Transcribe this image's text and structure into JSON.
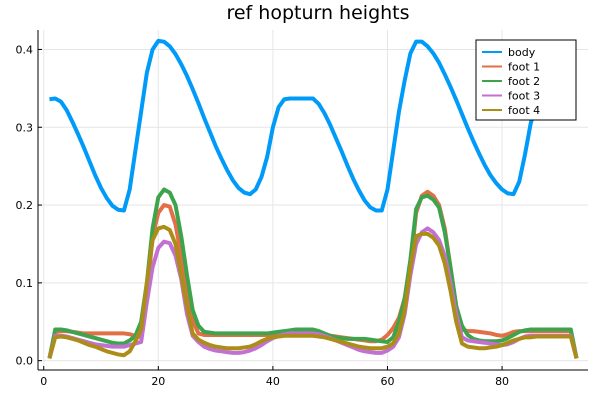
{
  "chart_data": {
    "type": "line",
    "title": "ref hopturn heights",
    "xlabel": "",
    "ylabel": "",
    "xlim": [
      -1,
      95
    ],
    "ylim": [
      -0.012,
      0.425
    ],
    "xticks": [
      0,
      20,
      40,
      60,
      80
    ],
    "xtick_labels": [
      "0",
      "20",
      "40",
      "60",
      "80"
    ],
    "yticks": [
      0.0,
      0.1,
      0.2,
      0.3,
      0.4
    ],
    "ytick_labels": [
      "0.0",
      "0.1",
      "0.2",
      "0.3",
      "0.4"
    ],
    "grid": true,
    "legend_position": "top-right",
    "x": [
      1,
      2,
      3,
      4,
      5,
      6,
      7,
      8,
      9,
      10,
      11,
      12,
      13,
      14,
      15,
      16,
      17,
      18,
      19,
      20,
      21,
      22,
      23,
      24,
      25,
      26,
      27,
      28,
      29,
      30,
      31,
      32,
      33,
      34,
      35,
      36,
      37,
      38,
      39,
      40,
      41,
      42,
      43,
      44,
      45,
      46,
      47,
      48,
      49,
      50,
      51,
      52,
      53,
      54,
      55,
      56,
      57,
      58,
      59,
      60,
      61,
      62,
      63,
      64,
      65,
      66,
      67,
      68,
      69,
      70,
      71,
      72,
      73,
      74,
      75,
      76,
      77,
      78,
      79,
      80,
      81,
      82,
      83,
      84,
      85,
      86,
      87,
      88,
      89,
      90,
      91,
      92,
      93
    ],
    "series": [
      {
        "name": "body",
        "color": "#009af9",
        "values": [
          0.336,
          0.337,
          0.333,
          0.322,
          0.307,
          0.291,
          0.274,
          0.256,
          0.238,
          0.222,
          0.209,
          0.199,
          0.194,
          0.193,
          0.22,
          0.27,
          0.32,
          0.37,
          0.4,
          0.411,
          0.41,
          0.404,
          0.394,
          0.381,
          0.366,
          0.349,
          0.331,
          0.312,
          0.294,
          0.276,
          0.26,
          0.245,
          0.232,
          0.222,
          0.216,
          0.214,
          0.22,
          0.236,
          0.262,
          0.3,
          0.326,
          0.336,
          0.337,
          0.337,
          0.337,
          0.337,
          0.337,
          0.33,
          0.318,
          0.303,
          0.286,
          0.269,
          0.251,
          0.234,
          0.219,
          0.206,
          0.197,
          0.193,
          0.193,
          0.22,
          0.27,
          0.32,
          0.36,
          0.395,
          0.41,
          0.41,
          0.404,
          0.395,
          0.383,
          0.368,
          0.352,
          0.335,
          0.317,
          0.299,
          0.282,
          0.266,
          0.251,
          0.238,
          0.228,
          0.22,
          0.215,
          0.214,
          0.23,
          0.265,
          0.305,
          0.33,
          0.337,
          0.337,
          0.337,
          0.337,
          0.337,
          0.337,
          0.337
        ]
      },
      {
        "name": "foot 1",
        "color": "#e26f46",
        "values": [
          0.003,
          0.037,
          0.038,
          0.038,
          0.037,
          0.036,
          0.035,
          0.035,
          0.035,
          0.035,
          0.035,
          0.035,
          0.035,
          0.035,
          0.034,
          0.032,
          0.03,
          0.08,
          0.16,
          0.19,
          0.2,
          0.198,
          0.175,
          0.135,
          0.088,
          0.052,
          0.035,
          0.033,
          0.033,
          0.033,
          0.033,
          0.033,
          0.033,
          0.033,
          0.033,
          0.033,
          0.033,
          0.033,
          0.033,
          0.034,
          0.036,
          0.037,
          0.038,
          0.038,
          0.038,
          0.038,
          0.038,
          0.036,
          0.034,
          0.032,
          0.031,
          0.03,
          0.029,
          0.028,
          0.027,
          0.026,
          0.025,
          0.025,
          0.027,
          0.033,
          0.042,
          0.055,
          0.08,
          0.12,
          0.19,
          0.212,
          0.217,
          0.212,
          0.2,
          0.17,
          0.12,
          0.07,
          0.04,
          0.038,
          0.038,
          0.037,
          0.036,
          0.035,
          0.033,
          0.032,
          0.034,
          0.037,
          0.038,
          0.038,
          0.038,
          0.038,
          0.038,
          0.038,
          0.038,
          0.038,
          0.038,
          0.038,
          0.003
        ]
      },
      {
        "name": "foot 2",
        "color": "#3da44d",
        "values": [
          0.003,
          0.04,
          0.04,
          0.039,
          0.037,
          0.035,
          0.033,
          0.031,
          0.029,
          0.027,
          0.025,
          0.023,
          0.022,
          0.022,
          0.026,
          0.032,
          0.05,
          0.1,
          0.17,
          0.21,
          0.22,
          0.216,
          0.2,
          0.16,
          0.11,
          0.065,
          0.045,
          0.037,
          0.036,
          0.035,
          0.035,
          0.035,
          0.035,
          0.035,
          0.035,
          0.035,
          0.035,
          0.035,
          0.035,
          0.036,
          0.037,
          0.038,
          0.039,
          0.04,
          0.04,
          0.04,
          0.04,
          0.038,
          0.035,
          0.032,
          0.03,
          0.029,
          0.028,
          0.028,
          0.028,
          0.028,
          0.027,
          0.026,
          0.025,
          0.024,
          0.03,
          0.05,
          0.08,
          0.13,
          0.195,
          0.21,
          0.212,
          0.207,
          0.197,
          0.165,
          0.12,
          0.07,
          0.045,
          0.033,
          0.028,
          0.026,
          0.025,
          0.025,
          0.025,
          0.026,
          0.029,
          0.033,
          0.037,
          0.039,
          0.04,
          0.04,
          0.04,
          0.04,
          0.04,
          0.04,
          0.04,
          0.04,
          0.003
        ]
      },
      {
        "name": "foot 3",
        "color": "#c271d2",
        "values": [
          0.003,
          0.032,
          0.032,
          0.031,
          0.029,
          0.027,
          0.025,
          0.023,
          0.021,
          0.02,
          0.019,
          0.018,
          0.018,
          0.018,
          0.02,
          0.022,
          0.024,
          0.075,
          0.12,
          0.145,
          0.153,
          0.151,
          0.135,
          0.105,
          0.06,
          0.032,
          0.024,
          0.018,
          0.015,
          0.013,
          0.012,
          0.011,
          0.01,
          0.01,
          0.011,
          0.013,
          0.016,
          0.02,
          0.025,
          0.029,
          0.032,
          0.034,
          0.035,
          0.035,
          0.035,
          0.035,
          0.035,
          0.034,
          0.032,
          0.029,
          0.026,
          0.023,
          0.02,
          0.017,
          0.014,
          0.012,
          0.011,
          0.01,
          0.01,
          0.013,
          0.018,
          0.03,
          0.06,
          0.11,
          0.15,
          0.165,
          0.17,
          0.165,
          0.155,
          0.135,
          0.1,
          0.06,
          0.03,
          0.026,
          0.025,
          0.024,
          0.023,
          0.022,
          0.021,
          0.02,
          0.021,
          0.024,
          0.028,
          0.031,
          0.032,
          0.032,
          0.032,
          0.032,
          0.032,
          0.032,
          0.032,
          0.032,
          0.003
        ]
      },
      {
        "name": "foot 4",
        "color": "#ac8d18",
        "values": [
          0.003,
          0.03,
          0.031,
          0.03,
          0.028,
          0.026,
          0.023,
          0.02,
          0.018,
          0.015,
          0.012,
          0.01,
          0.008,
          0.007,
          0.012,
          0.025,
          0.04,
          0.1,
          0.155,
          0.17,
          0.172,
          0.168,
          0.15,
          0.11,
          0.07,
          0.035,
          0.027,
          0.023,
          0.02,
          0.018,
          0.017,
          0.016,
          0.016,
          0.016,
          0.017,
          0.018,
          0.021,
          0.025,
          0.028,
          0.03,
          0.031,
          0.032,
          0.032,
          0.032,
          0.032,
          0.032,
          0.032,
          0.031,
          0.03,
          0.028,
          0.026,
          0.024,
          0.022,
          0.02,
          0.018,
          0.017,
          0.016,
          0.016,
          0.016,
          0.018,
          0.022,
          0.035,
          0.065,
          0.12,
          0.16,
          0.163,
          0.163,
          0.158,
          0.148,
          0.125,
          0.09,
          0.05,
          0.022,
          0.018,
          0.017,
          0.016,
          0.016,
          0.017,
          0.018,
          0.02,
          0.023,
          0.026,
          0.028,
          0.03,
          0.03,
          0.031,
          0.031,
          0.031,
          0.031,
          0.031,
          0.031,
          0.031,
          0.003
        ]
      }
    ]
  }
}
